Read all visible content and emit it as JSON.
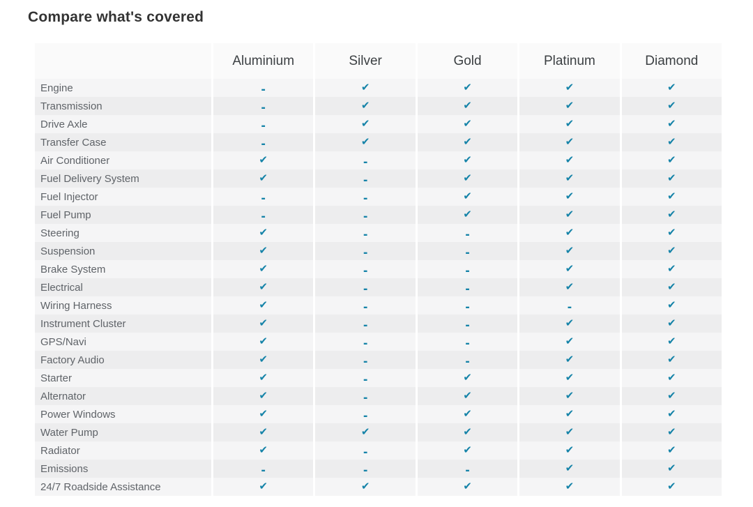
{
  "title": "Compare what's covered",
  "colors": {
    "accent": "#1583a8",
    "header_bg": "#fafafa",
    "row_odd_bg": "#f5f5f6",
    "row_even_bg": "#ededee",
    "label_text": "#5f6368",
    "header_text": "#3c4043",
    "title_text": "#333333"
  },
  "glyphs": {
    "covered": "✔",
    "not_covered": "-"
  },
  "table": {
    "plans": [
      "Aluminium",
      "Silver",
      "Gold",
      "Platinum",
      "Diamond"
    ],
    "rows": [
      {
        "label": "Engine",
        "covered": [
          false,
          true,
          true,
          true,
          true
        ]
      },
      {
        "label": "Transmission",
        "covered": [
          false,
          true,
          true,
          true,
          true
        ]
      },
      {
        "label": "Drive Axle",
        "covered": [
          false,
          true,
          true,
          true,
          true
        ]
      },
      {
        "label": "Transfer Case",
        "covered": [
          false,
          true,
          true,
          true,
          true
        ]
      },
      {
        "label": "Air Conditioner",
        "covered": [
          true,
          false,
          true,
          true,
          true
        ]
      },
      {
        "label": "Fuel Delivery System",
        "covered": [
          true,
          false,
          true,
          true,
          true
        ]
      },
      {
        "label": "Fuel Injector",
        "covered": [
          false,
          false,
          true,
          true,
          true
        ]
      },
      {
        "label": "Fuel Pump",
        "covered": [
          false,
          false,
          true,
          true,
          true
        ]
      },
      {
        "label": "Steering",
        "covered": [
          true,
          false,
          false,
          true,
          true
        ]
      },
      {
        "label": "Suspension",
        "covered": [
          true,
          false,
          false,
          true,
          true
        ]
      },
      {
        "label": "Brake System",
        "covered": [
          true,
          false,
          false,
          true,
          true
        ]
      },
      {
        "label": "Electrical",
        "covered": [
          true,
          false,
          false,
          true,
          true
        ]
      },
      {
        "label": "Wiring Harness",
        "covered": [
          true,
          false,
          false,
          false,
          true
        ]
      },
      {
        "label": "Instrument Cluster",
        "covered": [
          true,
          false,
          false,
          true,
          true
        ]
      },
      {
        "label": "GPS/Navi",
        "covered": [
          true,
          false,
          false,
          true,
          true
        ]
      },
      {
        "label": "Factory Audio",
        "covered": [
          true,
          false,
          false,
          true,
          true
        ]
      },
      {
        "label": "Starter",
        "covered": [
          true,
          false,
          true,
          true,
          true
        ]
      },
      {
        "label": "Alternator",
        "covered": [
          true,
          false,
          true,
          true,
          true
        ]
      },
      {
        "label": "Power Windows",
        "covered": [
          true,
          false,
          true,
          true,
          true
        ]
      },
      {
        "label": "Water Pump",
        "covered": [
          true,
          true,
          true,
          true,
          true
        ]
      },
      {
        "label": "Radiator",
        "covered": [
          true,
          false,
          true,
          true,
          true
        ]
      },
      {
        "label": "Emissions",
        "covered": [
          false,
          false,
          false,
          true,
          true
        ]
      },
      {
        "label": "24/7 Roadside Assistance",
        "covered": [
          true,
          true,
          true,
          true,
          true
        ]
      }
    ]
  }
}
